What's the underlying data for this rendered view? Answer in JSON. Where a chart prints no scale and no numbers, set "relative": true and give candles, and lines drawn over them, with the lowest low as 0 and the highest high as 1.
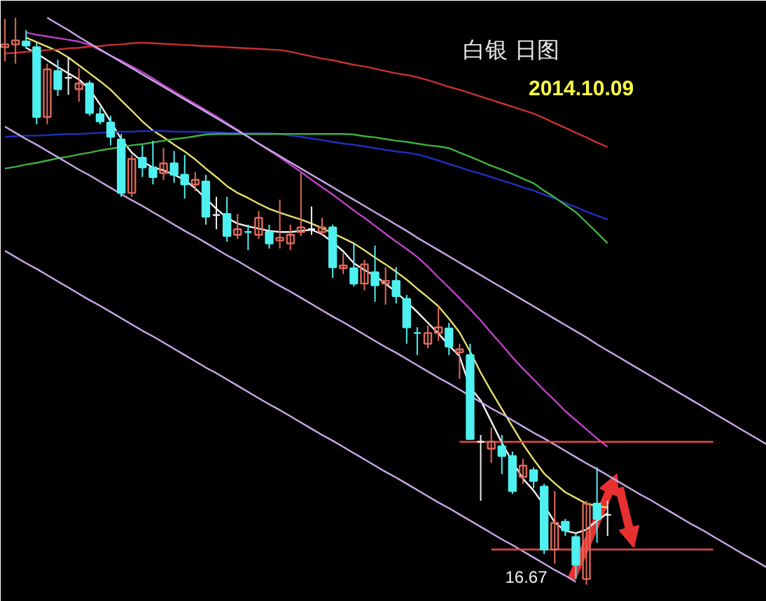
{
  "chart_data": {
    "type": "candlestick",
    "title": "白银 日图",
    "subtitle": "2014.10.09",
    "relative": true,
    "tick_labels": false,
    "grid": false,
    "categories": [
      null,
      null,
      null,
      null,
      null,
      null,
      null,
      null,
      null,
      null,
      null,
      null,
      null,
      null,
      null,
      null,
      null,
      null,
      null,
      null,
      null,
      null,
      null,
      null,
      null,
      null,
      null,
      null,
      null,
      null,
      null,
      null,
      null,
      null,
      null,
      null,
      null,
      null,
      null,
      null,
      null,
      null,
      null,
      null,
      null,
      null,
      null,
      null,
      null,
      null,
      null,
      null,
      null,
      null,
      null,
      null,
      null,
      null,
      null,
      null,
      null,
      null,
      null,
      null,
      null,
      null,
      null,
      null,
      null,
      null,
      null,
      null,
      null
    ],
    "ohlc": [
      [
        0.948,
        0.998,
        0.923,
        0.953
      ],
      [
        0.953,
        1.0,
        0.919,
        0.96
      ],
      [
        0.958,
        0.978,
        0.946,
        0.951
      ],
      [
        0.948,
        0.956,
        0.812,
        0.825
      ],
      [
        0.825,
        0.919,
        0.812,
        0.909
      ],
      [
        0.906,
        0.926,
        0.862,
        0.874
      ],
      [
        0.894,
        0.931,
        0.864,
        0.894
      ],
      [
        0.874,
        0.911,
        0.852,
        0.884
      ],
      [
        0.884,
        0.889,
        0.827,
        0.832
      ],
      [
        0.83,
        0.842,
        0.812,
        0.817
      ],
      [
        0.815,
        0.827,
        0.775,
        0.79
      ],
      [
        0.785,
        0.795,
        0.684,
        0.691
      ],
      [
        0.691,
        0.758,
        0.684,
        0.751
      ],
      [
        0.753,
        0.775,
        0.719,
        0.736
      ],
      [
        0.736,
        0.783,
        0.706,
        0.719
      ],
      [
        0.726,
        0.77,
        0.714,
        0.743
      ],
      [
        0.743,
        0.765,
        0.709,
        0.723
      ],
      [
        0.723,
        0.758,
        0.681,
        0.706
      ],
      [
        0.706,
        0.728,
        0.694,
        0.714
      ],
      [
        0.711,
        0.723,
        0.635,
        0.649
      ],
      [
        0.652,
        0.684,
        0.627,
        0.652
      ],
      [
        0.654,
        0.684,
        0.605,
        0.615
      ],
      [
        0.617,
        0.654,
        0.61,
        0.627
      ],
      [
        0.622,
        0.635,
        0.59,
        0.622
      ],
      [
        0.617,
        0.659,
        0.61,
        0.647
      ],
      [
        0.622,
        0.635,
        0.593,
        0.602
      ],
      [
        0.607,
        0.679,
        0.593,
        0.612
      ],
      [
        0.602,
        0.635,
        0.59,
        0.617
      ],
      [
        0.622,
        0.726,
        0.615,
        0.63
      ],
      [
        0.627,
        0.667,
        0.617,
        0.627
      ],
      [
        0.622,
        0.647,
        0.615,
        0.63
      ],
      [
        0.63,
        0.635,
        0.541,
        0.56
      ],
      [
        0.558,
        0.585,
        0.548,
        0.563
      ],
      [
        0.558,
        0.602,
        0.526,
        0.531
      ],
      [
        0.531,
        0.573,
        0.519,
        0.565
      ],
      [
        0.551,
        0.598,
        0.499,
        0.528
      ],
      [
        0.531,
        0.56,
        0.494,
        0.536
      ],
      [
        0.536,
        0.56,
        0.496,
        0.509
      ],
      [
        0.504,
        0.511,
        0.425,
        0.454
      ],
      [
        0.444,
        0.454,
        0.405,
        0.444
      ],
      [
        0.425,
        0.457,
        0.417,
        0.444
      ],
      [
        0.444,
        0.491,
        0.43,
        0.454
      ],
      [
        0.452,
        0.462,
        0.405,
        0.42
      ],
      [
        0.41,
        0.425,
        0.363,
        0.415
      ],
      [
        0.405,
        0.425,
        0.257,
        0.257
      ],
      [
        0.252,
        0.264,
        0.148,
        0.252
      ],
      [
        0.24,
        0.277,
        0.215,
        0.252
      ],
      [
        0.244,
        0.264,
        0.195,
        0.227
      ],
      [
        0.227,
        0.235,
        0.16,
        0.165
      ],
      [
        0.19,
        0.222,
        0.178,
        0.21
      ],
      [
        0.202,
        0.207,
        0.17,
        0.183
      ],
      [
        0.173,
        0.178,
        0.054,
        0.062
      ],
      [
        0.062,
        0.165,
        0.037,
        0.109
      ],
      [
        0.111,
        0.116,
        0.086,
        0.096
      ],
      [
        0.084,
        0.091,
        0.01,
        0.035
      ],
      [
        0.01,
        0.148,
        0.0,
        0.143
      ],
      [
        0.143,
        0.207,
        0.074,
        0.116
      ],
      [
        0.123,
        0.148,
        0.086,
        0.123
      ],
      null,
      null,
      null,
      null,
      null,
      null,
      null,
      null,
      null,
      null,
      null,
      null,
      null,
      null,
      null
    ],
    "colors": [
      "#e06a5a",
      "#e06a5a",
      "#4ef0f0",
      "#4ef0f0",
      "#e06a5a",
      "#4ef0f0",
      "#f0f0f0",
      "#e06a5a",
      "#4ef0f0",
      "#4ef0f0",
      "#4ef0f0",
      "#4ef0f0",
      "#e06a5a",
      "#4ef0f0",
      "#4ef0f0",
      "#e06a5a",
      "#4ef0f0",
      "#4ef0f0",
      "#e06a5a",
      "#4ef0f0",
      "#f0f0f0",
      "#4ef0f0",
      "#e06a5a",
      "#4ef0f0",
      "#e06a5a",
      "#4ef0f0",
      "#e06a5a",
      "#e06a5a",
      "#e06a5a",
      "#f0f0f0",
      "#e06a5a",
      "#4ef0f0",
      "#e06a5a",
      "#4ef0f0",
      "#e06a5a",
      "#4ef0f0",
      "#e06a5a",
      "#4ef0f0",
      "#4ef0f0",
      "#4ef0f0",
      "#e06a5a",
      "#e06a5a",
      "#4ef0f0",
      "#e06a5a",
      "#4ef0f0",
      "#f0f0f0",
      "#e06a5a",
      "#4ef0f0",
      "#4ef0f0",
      "#e06a5a",
      "#4ef0f0",
      "#4ef0f0",
      "#e06a5a",
      "#4ef0f0",
      "#4ef0f0",
      "#e06a5a",
      "#4ef0f0",
      "#f0f0f0",
      null,
      null,
      null,
      null,
      null,
      null,
      null,
      null,
      null,
      null,
      null,
      null,
      null,
      null,
      null
    ],
    "series": [
      {
        "type": "line",
        "color": "#f4f4f4",
        "values": [
          null,
          null,
          0.947,
          0.937,
          0.925,
          0.913,
          0.902,
          0.891,
          0.874,
          0.847,
          0.817,
          0.786,
          0.762,
          0.746,
          0.736,
          0.731,
          0.723,
          0.714,
          0.699,
          0.681,
          0.663,
          0.647,
          0.637,
          0.632,
          0.628,
          0.624,
          0.622,
          0.622,
          0.624,
          0.626,
          0.618,
          0.604,
          0.588,
          0.567,
          0.555,
          0.545,
          0.531,
          0.516,
          0.499,
          0.481,
          0.462,
          0.443,
          0.422,
          0.403,
          0.348,
          0.325,
          0.288,
          0.25,
          0.217,
          0.187,
          0.166,
          0.14,
          0.11,
          0.095,
          0.091,
          0.097,
          0.113,
          0.126,
          null,
          null,
          null,
          null,
          null,
          null,
          null,
          null,
          null,
          null,
          null,
          null,
          null,
          null,
          null
        ]
      },
      {
        "type": "line",
        "color": "#e8e070",
        "values": [
          null,
          null,
          0.965,
          0.957,
          0.949,
          0.941,
          0.93,
          0.916,
          0.902,
          0.888,
          0.873,
          0.854,
          0.836,
          0.817,
          0.801,
          0.789,
          0.776,
          0.764,
          0.75,
          0.734,
          0.719,
          0.703,
          0.691,
          0.682,
          0.672,
          0.663,
          0.656,
          0.65,
          0.644,
          0.637,
          0.629,
          0.62,
          0.611,
          0.602,
          0.59,
          0.577,
          0.565,
          0.552,
          0.538,
          0.522,
          0.507,
          0.491,
          0.469,
          0.445,
          0.411,
          0.374,
          0.341,
          0.31,
          0.279,
          0.248,
          0.221,
          0.196,
          0.179,
          0.163,
          0.153,
          0.143,
          0.139,
          0.136,
          null,
          null,
          null,
          null,
          null,
          null,
          null,
          null,
          null,
          null,
          null,
          null,
          null,
          null,
          null
        ]
      },
      {
        "type": "line",
        "color": "#c040c8",
        "values": [
          null,
          null,
          0.974,
          0.97,
          0.967,
          0.964,
          0.961,
          0.958,
          0.952,
          0.943,
          0.933,
          0.924,
          0.914,
          0.904,
          0.893,
          0.881,
          0.87,
          0.859,
          0.848,
          0.837,
          0.826,
          0.814,
          0.802,
          0.79,
          0.778,
          0.766,
          0.754,
          0.741,
          0.728,
          0.714,
          0.701,
          0.688,
          0.674,
          0.66,
          0.647,
          0.633,
          0.619,
          0.605,
          0.592,
          0.578,
          0.561,
          0.542,
          0.524,
          0.505,
          0.486,
          0.466,
          0.444,
          0.423,
          0.401,
          0.381,
          0.362,
          0.343,
          0.325,
          0.306,
          0.29,
          0.274,
          0.258,
          0.243,
          null,
          null,
          null,
          null,
          null,
          null,
          null,
          null,
          null,
          null,
          null,
          null,
          null,
          null,
          null
        ]
      },
      {
        "type": "line",
        "color": "#c83030",
        "values": [
          0.937,
          0.938,
          0.94,
          0.941,
          0.943,
          0.944,
          0.946,
          0.947,
          0.949,
          0.95,
          0.952,
          0.953,
          0.955,
          0.956,
          0.955,
          0.954,
          0.953,
          0.952,
          0.951,
          0.95,
          0.949,
          0.948,
          0.947,
          0.946,
          0.945,
          0.944,
          0.943,
          0.94,
          0.936,
          0.932,
          0.928,
          0.925,
          0.921,
          0.917,
          0.914,
          0.91,
          0.906,
          0.902,
          0.899,
          0.895,
          0.89,
          0.884,
          0.878,
          0.873,
          0.867,
          0.861,
          0.855,
          0.849,
          0.843,
          0.837,
          0.831,
          0.823,
          0.814,
          0.806,
          0.797,
          0.789,
          0.78,
          0.772,
          null,
          null,
          null,
          null,
          null,
          null,
          null,
          null,
          null,
          null,
          null,
          null,
          null,
          null,
          null
        ]
      },
      {
        "type": "line",
        "color": "#2030c0",
        "values": [
          0.79,
          0.791,
          0.792,
          0.792,
          0.793,
          0.794,
          0.795,
          0.795,
          0.796,
          0.797,
          0.798,
          0.799,
          0.799,
          0.8,
          0.8,
          0.8,
          0.799,
          0.799,
          0.799,
          0.798,
          0.798,
          0.797,
          0.797,
          0.796,
          0.796,
          0.796,
          0.795,
          0.792,
          0.79,
          0.787,
          0.784,
          0.781,
          0.778,
          0.776,
          0.773,
          0.77,
          0.767,
          0.764,
          0.762,
          0.759,
          0.754,
          0.748,
          0.742,
          0.736,
          0.73,
          0.725,
          0.719,
          0.713,
          0.707,
          0.701,
          0.695,
          0.688,
          0.681,
          0.673,
          0.666,
          0.658,
          0.651,
          0.644,
          null,
          null,
          null,
          null,
          null,
          null,
          null,
          null,
          null,
          null,
          null,
          null,
          null,
          null,
          null
        ]
      },
      {
        "type": "line",
        "color": "#40b040",
        "values": [
          0.734,
          0.737,
          0.741,
          0.744,
          0.748,
          0.752,
          0.755,
          0.759,
          0.762,
          0.766,
          0.769,
          0.772,
          0.775,
          0.777,
          0.78,
          0.783,
          0.786,
          0.788,
          0.791,
          0.794,
          0.795,
          0.795,
          0.795,
          0.795,
          0.795,
          0.795,
          0.795,
          0.795,
          0.795,
          0.795,
          0.795,
          0.795,
          0.795,
          0.794,
          0.791,
          0.789,
          0.786,
          0.783,
          0.781,
          0.778,
          0.775,
          0.773,
          0.77,
          0.762,
          0.755,
          0.747,
          0.739,
          0.732,
          0.724,
          0.716,
          0.708,
          0.695,
          0.683,
          0.67,
          0.657,
          0.639,
          0.621,
          0.602,
          null,
          null,
          null,
          null,
          null,
          null,
          null,
          null,
          null,
          null,
          null,
          null,
          null,
          null,
          null
        ]
      },
      {
        "type": "line",
        "color": "#c8a8e8",
        "values": [
          0.808,
          0.797,
          0.786,
          0.776,
          0.765,
          0.754,
          0.743,
          0.732,
          0.722,
          0.711,
          0.7,
          0.689,
          0.678,
          0.668,
          0.657,
          0.646,
          0.635,
          0.624,
          0.614,
          0.603,
          0.592,
          0.581,
          0.571,
          0.56,
          0.549,
          0.538,
          0.527,
          0.517,
          0.506,
          0.495,
          0.484,
          0.473,
          0.463,
          0.452,
          0.441,
          0.43,
          0.419,
          0.409,
          0.398,
          0.387,
          0.376,
          0.365,
          0.355,
          0.344,
          0.333,
          0.322,
          0.311,
          0.301,
          0.29,
          0.279,
          0.268,
          0.258,
          0.247,
          0.236,
          0.225,
          0.214,
          0.204,
          0.193,
          0.182,
          0.171,
          0.16,
          0.15,
          0.139,
          0.128,
          0.117,
          0.106,
          0.096,
          0.085,
          0.074,
          0.063,
          0.052,
          0.042,
          0.031
        ]
      },
      {
        "type": "line",
        "color": "#c8a8e8",
        "values": [
          0.589,
          0.578,
          0.567,
          0.557,
          0.546,
          0.535,
          0.524,
          0.513,
          0.502,
          0.492,
          0.481,
          0.47,
          0.459,
          0.448,
          0.438,
          0.427,
          0.416,
          0.405,
          0.394,
          0.383,
          0.373,
          0.362,
          0.351,
          0.34,
          0.329,
          0.318,
          0.308,
          0.297,
          0.286,
          0.275,
          0.264,
          0.254,
          0.243,
          0.232,
          0.221,
          0.21,
          0.199,
          0.189,
          0.178,
          0.167,
          0.156,
          0.145,
          0.135,
          0.124,
          0.113,
          0.102,
          0.091,
          0.08,
          0.07,
          0.059,
          0.048,
          0.037,
          0.026,
          0.016,
          0.005,
          null,
          null,
          null,
          null,
          null,
          null,
          null,
          null,
          null,
          null,
          null,
          null,
          null,
          null,
          null,
          null,
          null,
          null
        ]
      },
      {
        "type": "line",
        "color": "#c8a8e8",
        "values": [
          null,
          null,
          null,
          null,
          1.0,
          0.989,
          0.978,
          0.966,
          0.955,
          0.944,
          0.933,
          0.922,
          0.911,
          0.9,
          0.889,
          0.878,
          0.867,
          0.856,
          0.845,
          0.834,
          0.823,
          0.812,
          0.801,
          0.79,
          0.778,
          0.767,
          0.756,
          0.745,
          0.734,
          0.723,
          0.712,
          0.701,
          0.69,
          0.679,
          0.668,
          0.657,
          0.646,
          0.635,
          0.624,
          0.612,
          0.601,
          0.59,
          0.579,
          0.568,
          0.557,
          0.546,
          0.535,
          0.524,
          0.513,
          0.502,
          0.491,
          0.48,
          0.469,
          0.458,
          0.447,
          0.436,
          0.424,
          0.413,
          0.402,
          0.391,
          0.38,
          0.369,
          0.358,
          0.347,
          0.336,
          0.325,
          0.314,
          0.303,
          0.292,
          0.281,
          0.27,
          0.259,
          0.248
        ]
      },
      {
        "type": "line",
        "color": "#e84848",
        "values": [
          null,
          null,
          null,
          null,
          null,
          null,
          null,
          null,
          null,
          null,
          null,
          null,
          null,
          null,
          null,
          null,
          null,
          null,
          null,
          null,
          null,
          null,
          null,
          null,
          null,
          null,
          null,
          null,
          null,
          null,
          null,
          null,
          null,
          null,
          null,
          null,
          null,
          null,
          null,
          null,
          null,
          null,
          null,
          0.252,
          0.252,
          0.252,
          0.252,
          0.252,
          0.252,
          0.252,
          0.252,
          0.252,
          0.252,
          0.252,
          0.252,
          0.252,
          0.252,
          0.252,
          0.252,
          0.252,
          0.252,
          0.252,
          0.252,
          0.252,
          0.252,
          0.252,
          0.252,
          0.252,
          null,
          null,
          null,
          null,
          null
        ]
      },
      {
        "type": "line",
        "color": "#e84848",
        "values": [
          null,
          null,
          null,
          null,
          null,
          null,
          null,
          null,
          null,
          null,
          null,
          null,
          null,
          null,
          null,
          null,
          null,
          null,
          null,
          null,
          null,
          null,
          null,
          null,
          null,
          null,
          null,
          null,
          null,
          null,
          null,
          null,
          null,
          null,
          null,
          null,
          null,
          null,
          null,
          null,
          null,
          null,
          null,
          null,
          null,
          null,
          0.062,
          0.062,
          0.062,
          0.062,
          0.062,
          0.062,
          0.062,
          0.062,
          0.062,
          0.062,
          0.062,
          0.062,
          0.062,
          0.062,
          0.062,
          0.062,
          0.062,
          0.062,
          0.062,
          0.062,
          0.062,
          0.062,
          null,
          null,
          null,
          null,
          null
        ]
      }
    ],
    "annotations": [
      "16.67"
    ]
  }
}
